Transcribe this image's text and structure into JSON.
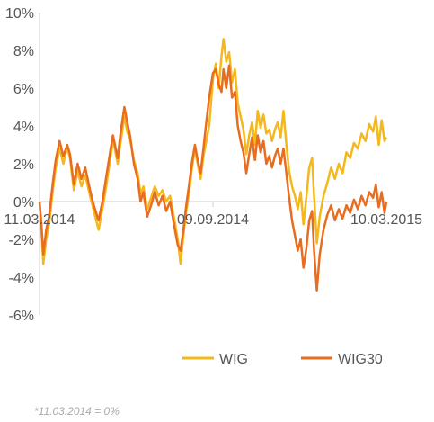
{
  "chart_data": {
    "type": "line",
    "ylim": [
      -6,
      10
    ],
    "y_ticks": [
      "10%",
      "8%",
      "6%",
      "4%",
      "2%",
      "0%",
      "-2%",
      "-4%",
      "-6%"
    ],
    "y_tick_values": [
      10,
      8,
      6,
      4,
      2,
      0,
      -2,
      -4,
      -6
    ],
    "x_ticks": [
      "11.03.2014",
      "09.09.2014",
      "10.03.2015"
    ],
    "x_tick_values": [
      "2014-03-11",
      "2014-09-09",
      "2015-03-10"
    ],
    "xlim": [
      "2014-03-11",
      "2015-03-10"
    ],
    "grid": false,
    "legend_position": "bottom",
    "series": [
      {
        "name": "WIG",
        "color": "#f5b81c",
        "points": [
          [
            "2014-03-11",
            0.0
          ],
          [
            "2014-03-13",
            -1.5
          ],
          [
            "2014-03-15",
            -3.3
          ],
          [
            "2014-03-18",
            -2.0
          ],
          [
            "2014-03-21",
            -1.2
          ],
          [
            "2014-03-25",
            0.6
          ],
          [
            "2014-03-28",
            1.8
          ],
          [
            "2014-04-01",
            2.8
          ],
          [
            "2014-04-05",
            2.0
          ],
          [
            "2014-04-09",
            2.9
          ],
          [
            "2014-04-12",
            2.3
          ],
          [
            "2014-04-16",
            0.6
          ],
          [
            "2014-04-20",
            1.6
          ],
          [
            "2014-04-24",
            0.8
          ],
          [
            "2014-04-28",
            1.4
          ],
          [
            "2014-05-03",
            0.3
          ],
          [
            "2014-05-07",
            -0.5
          ],
          [
            "2014-05-12",
            -1.5
          ],
          [
            "2014-05-16",
            -0.4
          ],
          [
            "2014-05-20",
            0.8
          ],
          [
            "2014-05-24",
            2.2
          ],
          [
            "2014-05-27",
            3.3
          ],
          [
            "2014-06-01",
            2.0
          ],
          [
            "2014-06-04",
            3.1
          ],
          [
            "2014-06-08",
            4.5
          ],
          [
            "2014-06-11",
            3.7
          ],
          [
            "2014-06-14",
            3.3
          ],
          [
            "2014-06-18",
            2.2
          ],
          [
            "2014-06-22",
            1.5
          ],
          [
            "2014-06-25",
            0.4
          ],
          [
            "2014-06-28",
            0.8
          ],
          [
            "2014-07-02",
            -0.4
          ],
          [
            "2014-07-06",
            0.2
          ],
          [
            "2014-07-10",
            0.8
          ],
          [
            "2014-07-14",
            0.3
          ],
          [
            "2014-07-18",
            0.6
          ],
          [
            "2014-07-22",
            0.0
          ],
          [
            "2014-07-26",
            0.3
          ],
          [
            "2014-07-30",
            -0.8
          ],
          [
            "2014-08-03",
            -2.0
          ],
          [
            "2014-08-06",
            -3.3
          ],
          [
            "2014-08-09",
            -1.8
          ],
          [
            "2014-08-12",
            -0.5
          ],
          [
            "2014-08-15",
            0.5
          ],
          [
            "2014-08-18",
            1.8
          ],
          [
            "2014-08-21",
            2.8
          ],
          [
            "2014-08-24",
            2.0
          ],
          [
            "2014-08-27",
            1.2
          ],
          [
            "2014-08-30",
            2.4
          ],
          [
            "2014-09-02",
            3.2
          ],
          [
            "2014-09-05",
            4.0
          ],
          [
            "2014-09-09",
            6.5
          ],
          [
            "2014-09-12",
            7.3
          ],
          [
            "2014-09-15",
            6.0
          ],
          [
            "2014-09-18",
            7.7
          ],
          [
            "2014-09-20",
            8.6
          ],
          [
            "2014-09-23",
            7.4
          ],
          [
            "2014-09-26",
            7.9
          ],
          [
            "2014-09-29",
            6.3
          ],
          [
            "2014-10-02",
            7.0
          ],
          [
            "2014-10-05",
            5.2
          ],
          [
            "2014-10-08",
            4.5
          ],
          [
            "2014-10-11",
            3.8
          ],
          [
            "2014-10-14",
            2.5
          ],
          [
            "2014-10-17",
            3.5
          ],
          [
            "2014-10-20",
            4.2
          ],
          [
            "2014-10-23",
            3.0
          ],
          [
            "2014-10-26",
            4.8
          ],
          [
            "2014-10-29",
            3.9
          ],
          [
            "2014-11-01",
            4.6
          ],
          [
            "2014-11-04",
            3.6
          ],
          [
            "2014-11-07",
            3.8
          ],
          [
            "2014-11-10",
            3.2
          ],
          [
            "2014-11-13",
            3.8
          ],
          [
            "2014-11-16",
            4.2
          ],
          [
            "2014-11-19",
            3.4
          ],
          [
            "2014-11-22",
            4.8
          ],
          [
            "2014-11-25",
            3.0
          ],
          [
            "2014-11-28",
            1.6
          ],
          [
            "2014-12-01",
            0.8
          ],
          [
            "2014-12-04",
            0.3
          ],
          [
            "2014-12-07",
            -0.4
          ],
          [
            "2014-12-10",
            0.5
          ],
          [
            "2014-12-13",
            -1.2
          ],
          [
            "2014-12-16",
            0.2
          ],
          [
            "2014-12-19",
            1.8
          ],
          [
            "2014-12-22",
            2.3
          ],
          [
            "2014-12-24",
            0.4
          ],
          [
            "2014-12-27",
            -2.2
          ],
          [
            "2014-12-30",
            -0.8
          ],
          [
            "2015-01-03",
            0.3
          ],
          [
            "2015-01-07",
            1.0
          ],
          [
            "2015-01-11",
            1.8
          ],
          [
            "2015-01-15",
            1.2
          ],
          [
            "2015-01-19",
            2.0
          ],
          [
            "2015-01-23",
            1.5
          ],
          [
            "2015-01-27",
            2.6
          ],
          [
            "2015-01-31",
            2.3
          ],
          [
            "2015-02-04",
            3.1
          ],
          [
            "2015-02-08",
            2.8
          ],
          [
            "2015-02-12",
            3.6
          ],
          [
            "2015-02-16",
            3.2
          ],
          [
            "2015-02-20",
            4.1
          ],
          [
            "2015-02-24",
            3.7
          ],
          [
            "2015-02-27",
            4.5
          ],
          [
            "2015-03-02",
            3.0
          ],
          [
            "2015-03-05",
            4.3
          ],
          [
            "2015-03-08",
            3.2
          ],
          [
            "2015-03-10",
            3.4
          ]
        ]
      },
      {
        "name": "WIG30",
        "color": "#e96d1f",
        "points": [
          [
            "2014-03-11",
            0.0
          ],
          [
            "2014-03-13",
            -1.2
          ],
          [
            "2014-03-15",
            -2.8
          ],
          [
            "2014-03-18",
            -1.5
          ],
          [
            "2014-03-21",
            -0.8
          ],
          [
            "2014-03-25",
            1.0
          ],
          [
            "2014-03-28",
            2.2
          ],
          [
            "2014-04-01",
            3.2
          ],
          [
            "2014-04-05",
            2.4
          ],
          [
            "2014-04-09",
            3.0
          ],
          [
            "2014-04-12",
            2.5
          ],
          [
            "2014-04-16",
            0.9
          ],
          [
            "2014-04-20",
            2.0
          ],
          [
            "2014-04-24",
            1.2
          ],
          [
            "2014-04-28",
            1.8
          ],
          [
            "2014-05-03",
            0.6
          ],
          [
            "2014-05-07",
            -0.2
          ],
          [
            "2014-05-12",
            -1.0
          ],
          [
            "2014-05-16",
            0.0
          ],
          [
            "2014-05-20",
            1.3
          ],
          [
            "2014-05-24",
            2.6
          ],
          [
            "2014-05-27",
            3.5
          ],
          [
            "2014-06-01",
            2.3
          ],
          [
            "2014-06-04",
            3.6
          ],
          [
            "2014-06-08",
            5.0
          ],
          [
            "2014-06-11",
            4.2
          ],
          [
            "2014-06-14",
            3.5
          ],
          [
            "2014-06-18",
            2.0
          ],
          [
            "2014-06-22",
            1.2
          ],
          [
            "2014-06-25",
            0.0
          ],
          [
            "2014-06-28",
            0.5
          ],
          [
            "2014-07-02",
            -0.8
          ],
          [
            "2014-07-06",
            -0.2
          ],
          [
            "2014-07-10",
            0.5
          ],
          [
            "2014-07-14",
            -0.2
          ],
          [
            "2014-07-18",
            0.3
          ],
          [
            "2014-07-22",
            -0.5
          ],
          [
            "2014-07-26",
            0.0
          ],
          [
            "2014-07-30",
            -1.2
          ],
          [
            "2014-08-03",
            -2.3
          ],
          [
            "2014-08-06",
            -2.6
          ],
          [
            "2014-08-09",
            -1.5
          ],
          [
            "2014-08-12",
            -0.2
          ],
          [
            "2014-08-15",
            0.9
          ],
          [
            "2014-08-18",
            2.1
          ],
          [
            "2014-08-21",
            3.0
          ],
          [
            "2014-08-24",
            2.2
          ],
          [
            "2014-08-27",
            1.5
          ],
          [
            "2014-08-30",
            2.8
          ],
          [
            "2014-09-02",
            4.2
          ],
          [
            "2014-09-05",
            5.5
          ],
          [
            "2014-09-09",
            6.8
          ],
          [
            "2014-09-12",
            7.0
          ],
          [
            "2014-09-15",
            6.2
          ],
          [
            "2014-09-18",
            5.8
          ],
          [
            "2014-09-20",
            7.0
          ],
          [
            "2014-09-23",
            6.0
          ],
          [
            "2014-09-26",
            7.2
          ],
          [
            "2014-09-29",
            5.5
          ],
          [
            "2014-10-02",
            5.8
          ],
          [
            "2014-10-05",
            4.0
          ],
          [
            "2014-10-08",
            3.2
          ],
          [
            "2014-10-11",
            2.6
          ],
          [
            "2014-10-14",
            1.5
          ],
          [
            "2014-10-17",
            2.5
          ],
          [
            "2014-10-20",
            3.4
          ],
          [
            "2014-10-23",
            2.2
          ],
          [
            "2014-10-26",
            3.5
          ],
          [
            "2014-10-29",
            2.6
          ],
          [
            "2014-11-01",
            3.2
          ],
          [
            "2014-11-04",
            2.0
          ],
          [
            "2014-11-07",
            2.4
          ],
          [
            "2014-11-10",
            1.8
          ],
          [
            "2014-11-13",
            2.4
          ],
          [
            "2014-11-16",
            2.8
          ],
          [
            "2014-11-19",
            2.0
          ],
          [
            "2014-11-22",
            2.8
          ],
          [
            "2014-11-25",
            1.5
          ],
          [
            "2014-11-28",
            0.2
          ],
          [
            "2014-12-01",
            -1.0
          ],
          [
            "2014-12-04",
            -1.8
          ],
          [
            "2014-12-07",
            -2.6
          ],
          [
            "2014-12-10",
            -2.0
          ],
          [
            "2014-12-13",
            -3.5
          ],
          [
            "2014-12-16",
            -2.5
          ],
          [
            "2014-12-19",
            -1.0
          ],
          [
            "2014-12-22",
            -0.5
          ],
          [
            "2014-12-24",
            -2.5
          ],
          [
            "2014-12-27",
            -4.7
          ],
          [
            "2014-12-30",
            -2.8
          ],
          [
            "2015-01-03",
            -1.5
          ],
          [
            "2015-01-07",
            -0.7
          ],
          [
            "2015-01-11",
            -0.2
          ],
          [
            "2015-01-15",
            -1.0
          ],
          [
            "2015-01-19",
            -0.4
          ],
          [
            "2015-01-23",
            -0.9
          ],
          [
            "2015-01-27",
            -0.2
          ],
          [
            "2015-01-31",
            -0.6
          ],
          [
            "2015-02-04",
            0.1
          ],
          [
            "2015-02-08",
            -0.4
          ],
          [
            "2015-02-12",
            0.3
          ],
          [
            "2015-02-16",
            -0.2
          ],
          [
            "2015-02-20",
            0.5
          ],
          [
            "2015-02-24",
            0.2
          ],
          [
            "2015-02-27",
            0.9
          ],
          [
            "2015-03-02",
            -0.3
          ],
          [
            "2015-03-05",
            0.5
          ],
          [
            "2015-03-08",
            -0.6
          ],
          [
            "2015-03-10",
            0.0
          ]
        ]
      }
    ]
  },
  "footnote": "*11.03.2014 = 0%"
}
